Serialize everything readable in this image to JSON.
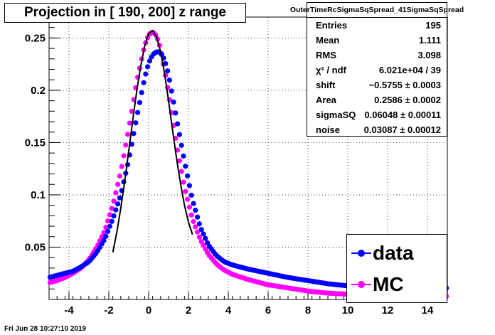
{
  "title": "Projection in [ 190, 200] z range",
  "stats": {
    "name": "OuterTimeRcSigmaSqSpread_41SigmaSqSpread",
    "rows": [
      {
        "label": "Entries",
        "value": "195"
      },
      {
        "label": "Mean",
        "value": "1.111"
      },
      {
        "label": "RMS",
        "value": "3.098"
      },
      {
        "label": "χ² / ndf",
        "value": "6.021e+04 / 39"
      },
      {
        "label": "shift",
        "value": "−0.5755 ± 0.0003"
      },
      {
        "label": "Area",
        "value": "0.2586 ± 0.0002"
      },
      {
        "label": "sigmaSQ",
        "value": "0.06048 ± 0.00011"
      },
      {
        "label": "noise",
        "value": "0.03087 ± 0.00012"
      }
    ]
  },
  "legend": [
    {
      "label": "data",
      "color": "#0000ff"
    },
    {
      "label": "MC",
      "color": "#ff00ff"
    }
  ],
  "timestamp": "Fri Jun 28 10:27:10 2019",
  "chart_data": {
    "type": "scatter",
    "title": "Projection in [ 190, 200] z range",
    "xlabel": "",
    "ylabel": "",
    "xlim": [
      -5,
      15
    ],
    "ylim": [
      0,
      0.27
    ],
    "xticks": [
      -4,
      -2,
      0,
      2,
      4,
      6,
      8,
      10,
      12,
      14
    ],
    "yticks": [
      0.05,
      0.1,
      0.15,
      0.2,
      0.25
    ],
    "ytick_labels": [
      "0.05",
      "0.1",
      "0.15",
      "0.2",
      "0.25"
    ],
    "grid": true,
    "legend_position": "bottom-right",
    "series": [
      {
        "name": "data",
        "color": "#0000ff",
        "x": [
          -5.0,
          -4.6,
          -4.2,
          -3.8,
          -3.4,
          -3.0,
          -2.6,
          -2.2,
          -1.8,
          -1.4,
          -1.0,
          -0.6,
          -0.2,
          0.0,
          0.2,
          0.4,
          0.6,
          0.8,
          1.0,
          1.4,
          1.8,
          2.2,
          2.6,
          3.0,
          3.4,
          3.8,
          4.2,
          5.0,
          6.0,
          7.0,
          8.0,
          9.0,
          10.0,
          11.0,
          12.0,
          13.0,
          14.0,
          15.0
        ],
        "values": [
          0.021,
          0.023,
          0.025,
          0.027,
          0.031,
          0.036,
          0.045,
          0.058,
          0.077,
          0.1,
          0.133,
          0.174,
          0.212,
          0.226,
          0.234,
          0.237,
          0.236,
          0.229,
          0.215,
          0.173,
          0.132,
          0.095,
          0.069,
          0.052,
          0.042,
          0.036,
          0.033,
          0.029,
          0.025,
          0.021,
          0.018,
          0.015,
          0.013,
          0.012,
          0.011,
          0.01,
          0.01,
          0.011
        ]
      },
      {
        "name": "MC",
        "color": "#ff00ff",
        "x": [
          -5.0,
          -4.6,
          -4.2,
          -3.8,
          -3.4,
          -3.0,
          -2.6,
          -2.2,
          -1.8,
          -1.4,
          -1.0,
          -0.6,
          -0.2,
          0.0,
          0.2,
          0.4,
          0.6,
          0.8,
          1.0,
          1.4,
          1.8,
          2.2,
          2.6,
          3.0,
          3.4,
          3.8,
          4.2,
          5.0,
          6.0,
          7.0,
          8.0,
          9.0,
          10.0,
          11.0,
          12.0,
          13.0,
          14.0,
          15.0
        ],
        "values": [
          0.016,
          0.018,
          0.021,
          0.025,
          0.03,
          0.038,
          0.05,
          0.066,
          0.09,
          0.122,
          0.163,
          0.208,
          0.243,
          0.253,
          0.256,
          0.252,
          0.24,
          0.22,
          0.197,
          0.148,
          0.107,
          0.077,
          0.057,
          0.043,
          0.034,
          0.028,
          0.024,
          0.019,
          0.014,
          0.011,
          0.008,
          0.006,
          0.005,
          0.004,
          0.003,
          0.003,
          0.003,
          0.003
        ]
      },
      {
        "name": "",
        "color": "#000000",
        "style": "line",
        "x": [
          -1.8,
          -1.6,
          -1.4,
          -1.2,
          -1.0,
          -0.8,
          -0.6,
          -0.4,
          -0.2,
          0.0,
          0.2,
          0.4,
          0.6,
          0.8,
          1.0,
          1.2,
          1.4,
          1.6,
          1.8,
          2.0,
          2.2
        ],
        "values": [
          0.045,
          0.064,
          0.087,
          0.113,
          0.142,
          0.171,
          0.199,
          0.223,
          0.242,
          0.254,
          0.257,
          0.251,
          0.237,
          0.216,
          0.19,
          0.162,
          0.135,
          0.111,
          0.09,
          0.074,
          0.062
        ]
      }
    ]
  }
}
